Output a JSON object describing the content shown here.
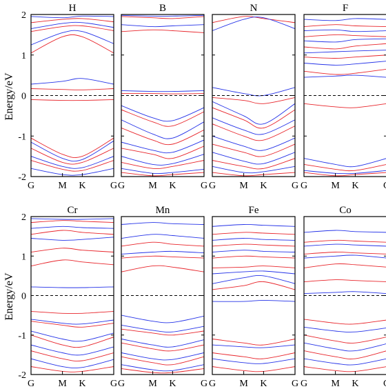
{
  "figure": {
    "ylabel": "Energy/eV"
  },
  "chart_data": {
    "type": "line",
    "ylabel": "Energy/eV",
    "ylim": [
      -2,
      2
    ],
    "yticks": [
      -2,
      -1,
      0,
      1,
      2
    ],
    "xticks": [
      "G",
      "M",
      "K",
      "G"
    ],
    "fermi_level": 0,
    "fermi_style": "dashed",
    "series_colors": {
      "spin_up": "#e8242a",
      "spin_down": "#2432e8"
    },
    "panels": [
      {
        "title": "H",
        "bands": {
          "red": [
            [
              -0.1,
              -0.12,
              -0.12,
              -0.1
            ],
            [
              0.17,
              0.15,
              0.14,
              0.17
            ],
            [
              1.05,
              1.45,
              1.45,
              1.05
            ],
            [
              1.58,
              1.7,
              1.72,
              1.6
            ],
            [
              1.8,
              1.88,
              1.9,
              1.82
            ],
            [
              -1.05,
              -1.45,
              -1.5,
              -1.05
            ],
            [
              -1.3,
              -1.65,
              -1.65,
              -1.3
            ],
            [
              -1.6,
              -1.82,
              -1.85,
              -1.6
            ]
          ],
          "blue": [
            [
              0.28,
              0.35,
              0.42,
              0.28
            ],
            [
              1.25,
              1.55,
              1.58,
              1.28
            ],
            [
              1.65,
              1.78,
              1.8,
              1.68
            ],
            [
              1.95,
              1.92,
              1.96,
              1.95
            ],
            [
              -1.15,
              -1.55,
              -1.58,
              -1.12
            ],
            [
              -1.5,
              -1.75,
              -1.78,
              -1.5
            ],
            [
              -1.8,
              -1.95,
              -1.95,
              -1.8
            ]
          ]
        }
      },
      {
        "title": "B",
        "bands": {
          "red": [
            [
              0.05,
              0.05,
              0.04,
              0.05
            ],
            [
              1.58,
              1.62,
              1.6,
              1.55
            ],
            [
              1.95,
              1.92,
              1.9,
              1.95
            ],
            [
              -0.35,
              -0.65,
              -0.75,
              -0.4
            ],
            [
              -0.8,
              -1.1,
              -1.2,
              -0.85
            ],
            [
              -1.3,
              -1.45,
              -1.55,
              -1.25
            ],
            [
              -1.65,
              -1.8,
              -1.75,
              -1.6
            ],
            [
              -1.9,
              -1.98,
              -1.95,
              -1.9
            ]
          ],
          "blue": [
            [
              0.12,
              0.1,
              0.1,
              0.12
            ],
            [
              1.75,
              1.7,
              1.72,
              1.75
            ],
            [
              1.98,
              1.96,
              1.96,
              1.98
            ],
            [
              -0.25,
              -0.55,
              -0.62,
              -0.3
            ],
            [
              -0.6,
              -0.95,
              -1.05,
              -0.65
            ],
            [
              -1.15,
              -1.35,
              -1.4,
              -1.1
            ],
            [
              -1.5,
              -1.7,
              -1.68,
              -1.45
            ],
            [
              -1.8,
              -1.92,
              -1.9,
              -1.82
            ]
          ]
        }
      },
      {
        "title": "N",
        "bands": {
          "red": [
            [
              -0.05,
              -0.12,
              -0.2,
              -0.05
            ],
            [
              1.8,
              1.95,
              1.9,
              1.8
            ],
            [
              -0.3,
              -0.6,
              -0.8,
              -0.35
            ],
            [
              -0.7,
              -1.0,
              -1.1,
              -0.75
            ],
            [
              -1.2,
              -1.4,
              -1.5,
              -1.2
            ],
            [
              -1.6,
              -1.75,
              -1.8,
              -1.55
            ],
            [
              -1.9,
              -1.98,
              -1.95,
              -1.9
            ]
          ],
          "blue": [
            [
              0.2,
              0.05,
              0.0,
              0.2
            ],
            [
              1.6,
              1.88,
              1.92,
              1.65
            ],
            [
              -0.15,
              -0.5,
              -0.7,
              -0.2
            ],
            [
              -0.55,
              -0.85,
              -0.95,
              -0.6
            ],
            [
              -1.0,
              -1.25,
              -1.35,
              -1.05
            ],
            [
              -1.4,
              -1.62,
              -1.68,
              -1.4
            ],
            [
              -1.75,
              -1.9,
              -1.88,
              -1.75
            ]
          ]
        }
      },
      {
        "title": "F",
        "bands": {
          "red": [
            [
              -0.2,
              -0.28,
              -0.3,
              -0.2
            ],
            [
              0.6,
              0.52,
              0.55,
              0.65
            ],
            [
              0.95,
              0.92,
              0.95,
              1.0
            ],
            [
              1.2,
              1.15,
              1.22,
              1.28
            ],
            [
              1.45,
              1.5,
              1.48,
              1.45
            ],
            [
              1.7,
              1.75,
              1.72,
              1.7
            ],
            [
              -1.7,
              -1.82,
              -1.85,
              -1.7
            ],
            [
              -1.9,
              -1.98,
              -1.95,
              -1.9
            ]
          ],
          "blue": [
            [
              0.45,
              0.48,
              0.5,
              0.45
            ],
            [
              0.8,
              0.75,
              0.78,
              0.85
            ],
            [
              1.05,
              1.08,
              1.1,
              1.12
            ],
            [
              1.35,
              1.32,
              1.38,
              1.4
            ],
            [
              1.6,
              1.62,
              1.58,
              1.6
            ],
            [
              1.88,
              1.85,
              1.9,
              1.88
            ],
            [
              -1.55,
              -1.7,
              -1.75,
              -1.55
            ],
            [
              -1.85,
              -1.92,
              -1.92,
              -1.85
            ]
          ]
        }
      },
      {
        "title": "Cr",
        "bands": {
          "red": [
            [
              -0.4,
              -0.45,
              -0.45,
              -0.4
            ],
            [
              -0.65,
              -0.75,
              -0.8,
              -0.7
            ],
            [
              0.75,
              0.9,
              0.85,
              0.78
            ],
            [
              1.1,
              1.2,
              1.15,
              1.1
            ],
            [
              1.55,
              1.65,
              1.6,
              1.55
            ],
            [
              1.85,
              1.9,
              1.88,
              1.85
            ],
            [
              -1.0,
              -1.25,
              -1.3,
              -1.05
            ],
            [
              -1.4,
              -1.6,
              -1.65,
              -1.45
            ],
            [
              -1.8,
              -1.92,
              -1.92,
              -1.8
            ]
          ],
          "blue": [
            [
              0.22,
              0.2,
              0.2,
              0.22
            ],
            [
              -0.6,
              -0.7,
              -0.72,
              -0.62
            ],
            [
              1.45,
              1.4,
              1.42,
              1.48
            ],
            [
              1.7,
              1.75,
              1.72,
              1.7
            ],
            [
              1.95,
              1.93,
              1.93,
              1.95
            ],
            [
              -0.9,
              -1.1,
              -1.15,
              -0.95
            ],
            [
              -1.25,
              -1.45,
              -1.5,
              -1.3
            ],
            [
              -1.6,
              -1.8,
              -1.82,
              -1.62
            ]
          ]
        }
      },
      {
        "title": "Mn",
        "bands": {
          "red": [
            [
              0.6,
              0.75,
              0.72,
              0.6
            ],
            [
              0.95,
              1.0,
              0.98,
              0.95
            ],
            [
              1.25,
              1.35,
              1.3,
              1.25
            ],
            [
              -0.85,
              -0.95,
              -1.0,
              -0.9
            ],
            [
              -1.2,
              -1.35,
              -1.4,
              -1.25
            ],
            [
              -1.55,
              -1.7,
              -1.75,
              -1.55
            ],
            [
              -1.85,
              -1.95,
              -1.95,
              -1.85
            ]
          ],
          "blue": [
            [
              -0.5,
              -0.65,
              -0.68,
              -0.52
            ],
            [
              1.05,
              1.1,
              1.12,
              1.08
            ],
            [
              1.45,
              1.55,
              1.52,
              1.45
            ],
            [
              1.8,
              1.85,
              1.82,
              1.8
            ],
            [
              -0.75,
              -0.88,
              -0.92,
              -0.78
            ],
            [
              -1.1,
              -1.25,
              -1.3,
              -1.12
            ],
            [
              -1.45,
              -1.6,
              -1.62,
              -1.45
            ],
            [
              -1.75,
              -1.88,
              -1.9,
              -1.75
            ]
          ]
        }
      },
      {
        "title": "Fe",
        "bands": {
          "red": [
            [
              0.15,
              0.25,
              0.35,
              0.15
            ],
            [
              0.7,
              0.72,
              0.75,
              0.7
            ],
            [
              0.95,
              1.0,
              0.98,
              0.95
            ],
            [
              1.25,
              1.3,
              1.28,
              1.25
            ],
            [
              1.55,
              1.6,
              1.58,
              1.55
            ],
            [
              -1.1,
              -1.2,
              -1.25,
              -1.1
            ],
            [
              -1.45,
              -1.55,
              -1.6,
              -1.45
            ],
            [
              -1.8,
              -1.9,
              -1.92,
              -1.8
            ]
          ],
          "blue": [
            [
              -0.15,
              -0.15,
              -0.12,
              -0.15
            ],
            [
              0.3,
              0.45,
              0.5,
              0.3
            ],
            [
              0.55,
              0.6,
              0.62,
              0.55
            ],
            [
              1.1,
              1.15,
              1.12,
              1.1
            ],
            [
              1.4,
              1.45,
              1.42,
              1.4
            ],
            [
              1.75,
              1.8,
              1.78,
              1.75
            ],
            [
              -1.25,
              -1.3,
              -1.32,
              -1.25
            ],
            [
              -1.6,
              -1.7,
              -1.72,
              -1.6
            ]
          ]
        }
      },
      {
        "title": "Co",
        "bands": {
          "red": [
            [
              0.35,
              0.4,
              0.38,
              0.35
            ],
            [
              0.7,
              0.8,
              0.78,
              0.72
            ],
            [
              1.05,
              1.1,
              1.08,
              1.05
            ],
            [
              1.35,
              1.4,
              1.38,
              1.35
            ],
            [
              -0.6,
              -0.7,
              -0.72,
              -0.62
            ],
            [
              -1.0,
              -1.15,
              -1.2,
              -1.05
            ],
            [
              -1.4,
              -1.55,
              -1.6,
              -1.4
            ],
            [
              -1.8,
              -1.9,
              -1.92,
              -1.8
            ]
          ],
          "blue": [
            [
              0.05,
              0.08,
              0.1,
              0.05
            ],
            [
              0.95,
              1.0,
              1.02,
              0.95
            ],
            [
              1.25,
              1.3,
              1.28,
              1.25
            ],
            [
              1.6,
              1.65,
              1.62,
              1.6
            ],
            [
              -0.8,
              -0.9,
              -0.92,
              -0.82
            ],
            [
              -1.2,
              -1.35,
              -1.4,
              -1.22
            ],
            [
              -1.6,
              -1.72,
              -1.75,
              -1.6
            ]
          ]
        }
      }
    ]
  }
}
